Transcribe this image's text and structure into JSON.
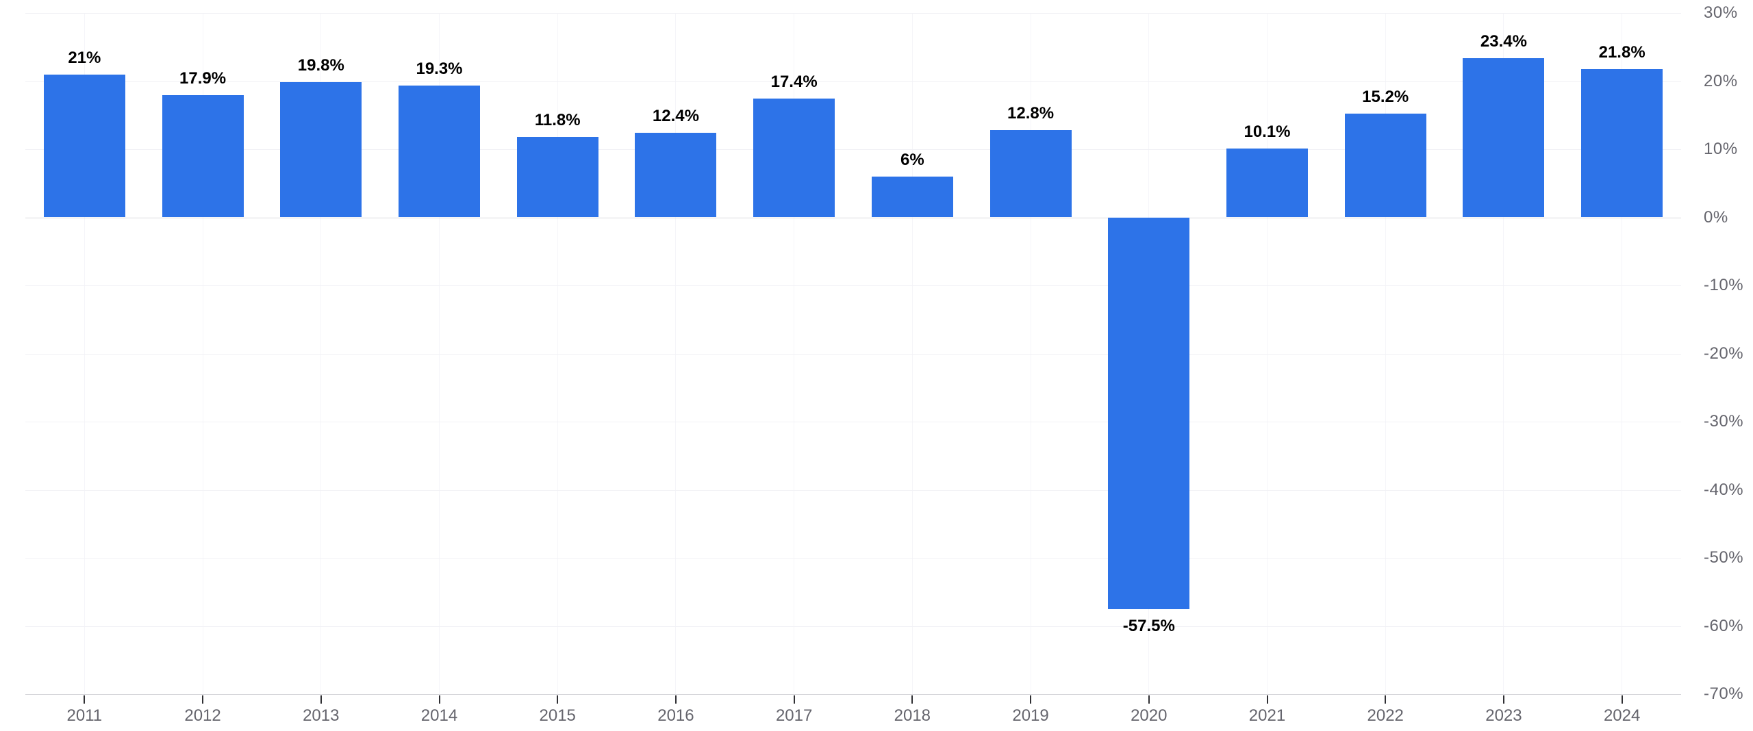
{
  "chart_data": {
    "type": "bar",
    "categories": [
      "2011",
      "2012",
      "2013",
      "2014",
      "2015",
      "2016",
      "2017",
      "2018",
      "2019",
      "2020",
      "2021",
      "2022",
      "2023",
      "2024"
    ],
    "values": [
      21,
      17.9,
      19.8,
      19.3,
      11.8,
      12.4,
      17.4,
      6,
      12.8,
      -57.5,
      10.1,
      15.2,
      23.4,
      21.8
    ],
    "data_labels": [
      "21%",
      "17.9%",
      "19.8%",
      "19.3%",
      "11.8%",
      "12.4%",
      "17.4%",
      "6%",
      "12.8%",
      "-57.5%",
      "10.1%",
      "15.2%",
      "23.4%",
      "21.8%"
    ],
    "xlabel": "",
    "ylabel": "",
    "ylim": [
      -70,
      30
    ],
    "y_axis": {
      "side": "right",
      "tick_values": [
        30,
        20,
        10,
        0,
        -10,
        -20,
        -30,
        -40,
        -50,
        -60,
        -70
      ],
      "tick_labels": [
        "30%",
        "20%",
        "10%",
        "0%",
        "-10%",
        "-20%",
        "-30%",
        "-40%",
        "-50%",
        "-60%",
        "-70%"
      ]
    },
    "grid": {
      "horizontal": true,
      "vertical": true
    },
    "legend": "none",
    "colors": {
      "bar": "#2d73e8",
      "data_label": "#000000",
      "axis_label": "#65656d",
      "horizontal_gridline": "#f1f1f5",
      "vertical_gridline": "#f5f5f9",
      "zero_line": "#dbdbdf",
      "axis_line": "#cfcfd4",
      "tick_mark": "#2f2f33",
      "background": "#ffffff"
    }
  }
}
